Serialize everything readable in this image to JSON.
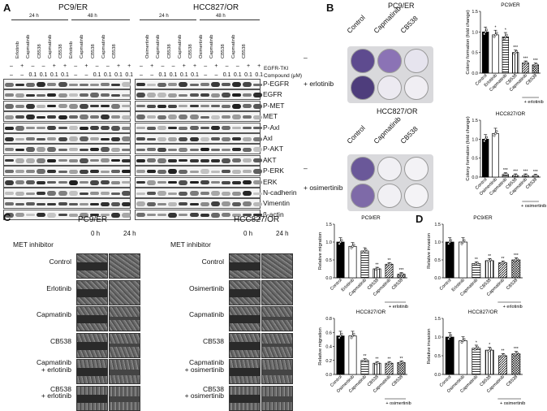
{
  "panelA": {
    "letter": "A",
    "left_title": "PC9/ER",
    "right_title": "HCC827/OR",
    "time_24": "24 h",
    "time_48": "48 h",
    "egfr_label": "EGFR-TKI",
    "compound_label": "Compound (μM)",
    "left_lanes": [
      "Erlotinib",
      "Capmatinib",
      "CB538",
      "Capmatinib",
      "CB538",
      "Erlotinib",
      "Capmatinib",
      "CB538",
      "Capmatinib",
      "CB538"
    ],
    "right_lanes": [
      "Osimertinib",
      "Capmatinib",
      "CB538",
      "Capmatinib",
      "CB538",
      "Osimertinib",
      "Capmatinib",
      "CB538",
      "Capmatinib",
      "CB538"
    ],
    "egfr_row": [
      "–",
      "+",
      "–",
      "–",
      "+",
      "+",
      "–",
      "+",
      "–",
      "–",
      "+",
      "+"
    ],
    "compound_row": [
      "–",
      "–",
      "0.1",
      "0.1",
      "0.1",
      "0.1",
      "–",
      "–",
      "0.1",
      "0.1",
      "0.1",
      "0.1"
    ],
    "proteins": [
      "P-EGFR",
      "EGFR",
      "P-MET",
      "MET",
      "P-Axl",
      "Axl",
      "P-AKT",
      "AKT",
      "P-ERK",
      "ERK",
      "N-cadherin",
      "Vimentin",
      "β-actin"
    ]
  },
  "panelB": {
    "letter": "B",
    "top_title": "PC9/ER",
    "bottom_title": "HCC827/OR",
    "cols": [
      "Control",
      "Capmatinib",
      "CB538"
    ],
    "row_minus": "–",
    "row_erlotinib": "+ erlotinib",
    "row_osimertinib": "+ osimertinib",
    "chart_top_title": "PC9/ER",
    "chart_bottom_title": "HCC827/OR",
    "ylabel": "Colony formation (fold change)"
  },
  "panelC": {
    "letter": "C",
    "left_title": "PC9/ER",
    "right_title": "HCC827/OR",
    "met_label": "MET inhibitor",
    "t0": "0 h",
    "t24": "24 h",
    "left_rows": [
      "Control",
      "Erlotinib",
      "Capmatinib",
      "CB538",
      "Capmatinib\n+ erlotinib",
      "CB538\n+ erlotinib"
    ],
    "right_rows": [
      "Control",
      "Osimertinib",
      "Capmatinib",
      "CB538",
      "Capmatinib\n+ osimertinib",
      "CB538\n+ osimertinib"
    ],
    "ylabel": "Relative migration"
  },
  "panelD": {
    "letter": "D",
    "ylabel": "Relative invasion"
  },
  "chart_data": [
    {
      "id": "B_pc9",
      "type": "bar",
      "title": "PC9/ER",
      "ylabel": "Colony formation (fold change)",
      "ylim": [
        0,
        1.5
      ],
      "yticks": [
        "0.0",
        "0.5",
        "1.0",
        "1.5"
      ],
      "categories": [
        "Control",
        "Erlotinib",
        "Capmatinib",
        "CB538",
        "Capmatinib",
        "CB538"
      ],
      "values": [
        1.0,
        0.93,
        0.88,
        0.5,
        0.25,
        0.2
      ],
      "sig": [
        "",
        "*",
        "*",
        "***",
        "***",
        "***"
      ],
      "group_label": "+ erlotinib"
    },
    {
      "id": "B_hcc",
      "type": "bar",
      "title": "HCC827/OR",
      "ylabel": "Colony formation (fold change)",
      "ylim": [
        0,
        1.5
      ],
      "yticks": [
        "0.0",
        "0.5",
        "1.0",
        "1.5"
      ],
      "categories": [
        "Control",
        "Osimertinib",
        "Capmatinib",
        "CB538",
        "Capmatinib",
        "CB538"
      ],
      "values": [
        1.0,
        1.15,
        0.07,
        0.04,
        0.04,
        0.03
      ],
      "sig": [
        "",
        "",
        "***",
        "***",
        "***",
        "***"
      ],
      "group_label": "+ osimertinib"
    },
    {
      "id": "C_pc9",
      "type": "bar",
      "title": "PC9/ER",
      "ylabel": "Relative migration",
      "ylim": [
        0,
        1.5
      ],
      "yticks": [
        "0.0",
        "0.5",
        "1.0",
        "1.5"
      ],
      "categories": [
        "Control",
        "Erlotinib",
        "Capmatinib",
        "CB538",
        "Capmatinib",
        "CB538"
      ],
      "values": [
        1.0,
        0.88,
        0.75,
        0.25,
        0.38,
        0.1
      ],
      "sig": [
        "",
        "",
        "",
        "**",
        "**",
        "***"
      ],
      "group_label": "+ erlotinib"
    },
    {
      "id": "C_hcc",
      "type": "bar",
      "title": "HCC827/OR",
      "ylabel": "Relative migration",
      "ylim": [
        0,
        0.8
      ],
      "yticks": [
        "0.0",
        "0.2",
        "0.4",
        "0.6",
        "0.8"
      ],
      "categories": [
        "Control",
        "Osimertinib",
        "Capmatinib",
        "CB538",
        "Capmatinib",
        "CB538"
      ],
      "values": [
        0.55,
        0.55,
        0.2,
        0.16,
        0.16,
        0.17
      ],
      "sig": [
        "",
        "",
        "**",
        "**",
        "**",
        "**"
      ],
      "group_label": "+ osimertinib"
    },
    {
      "id": "D_pc9",
      "type": "bar",
      "title": "PC9/ER",
      "ylabel": "Relative invasion",
      "ylim": [
        0,
        1.5
      ],
      "yticks": [
        "0.0",
        "0.5",
        "1.0",
        "1.5"
      ],
      "categories": [
        "Control",
        "Erlotinib",
        "Capmatinib",
        "CB538",
        "Capmatinib",
        "CB538"
      ],
      "values": [
        1.0,
        1.0,
        0.4,
        0.48,
        0.42,
        0.5
      ],
      "sig": [
        "",
        "",
        "**",
        "**",
        "**",
        "***"
      ],
      "group_label": "+ erlotinib"
    },
    {
      "id": "D_hcc",
      "type": "bar",
      "title": "HCC827/OR",
      "ylabel": "Relative invasion",
      "ylim": [
        0,
        1.5
      ],
      "yticks": [
        "0.0",
        "0.5",
        "1.0",
        "1.5"
      ],
      "categories": [
        "Control",
        "Osimertinib",
        "Capmatinib",
        "CB538",
        "Capmatinib",
        "CB538"
      ],
      "values": [
        1.0,
        0.9,
        0.7,
        0.65,
        0.5,
        0.55
      ],
      "sig": [
        "",
        "",
        "*",
        "*",
        "**",
        "***"
      ],
      "group_label": "+ osimertinib"
    }
  ]
}
